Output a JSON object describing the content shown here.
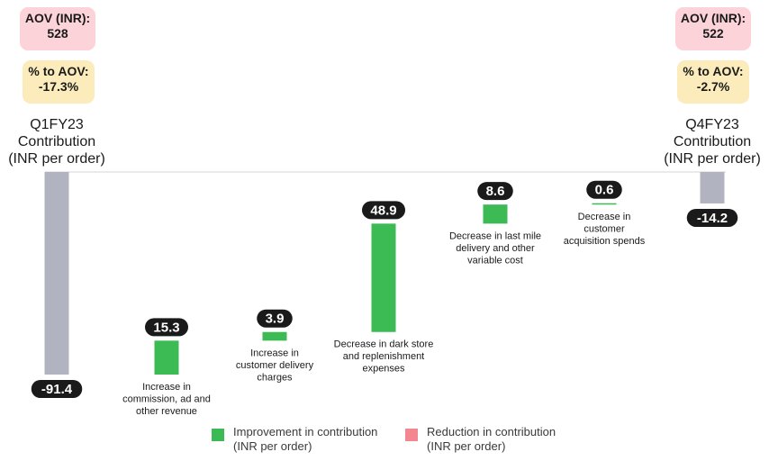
{
  "start": {
    "aov": "AOV (INR):\n528",
    "pct": "% to AOV:\n-17.3%",
    "label": "Q1FY23\nContribution\n(INR per order)"
  },
  "end": {
    "aov": "AOV (INR):\n522",
    "pct": "% to AOV:\n-2.7%",
    "label": "Q4FY23\nContribution\n(INR per order)"
  },
  "legend": {
    "improvement": "Improvement in contribution\n(INR per order)",
    "reduction": "Reduction in contribution\n(INR per order)"
  },
  "colors": {
    "improvement": "#3cba54",
    "reduction": "#f4868f",
    "total": "#b1b4c0",
    "value_badge": "#1a1a1a"
  },
  "chart_data": {
    "type": "bar",
    "subtype": "waterfall",
    "unit": "INR per order",
    "steps": [
      {
        "kind": "total",
        "label": "",
        "value": -91.4,
        "value_label": "-91.4"
      },
      {
        "kind": "delta",
        "label": "Increase in\ncommission, ad and\nother revenue",
        "value": 15.3,
        "value_label": "15.3"
      },
      {
        "kind": "delta",
        "label": "Increase in\ncustomer delivery\ncharges",
        "value": 3.9,
        "value_label": "3.9"
      },
      {
        "kind": "delta",
        "label": "Decrease in dark store\nand replenishment\nexpenses",
        "value": 48.9,
        "value_label": "48.9"
      },
      {
        "kind": "delta",
        "label": "Decrease in last mile\ndelivery and other\nvariable cost",
        "value": 8.6,
        "value_label": "8.6"
      },
      {
        "kind": "delta",
        "label": "Decrease in\ncustomer\nacquisition spends",
        "value": 0.6,
        "value_label": "0.6"
      },
      {
        "kind": "total",
        "label": "",
        "value": -14.2,
        "value_label": "-14.2"
      }
    ],
    "ylim": [
      -91.4,
      0
    ],
    "grid": false,
    "legend_position": "bottom"
  }
}
